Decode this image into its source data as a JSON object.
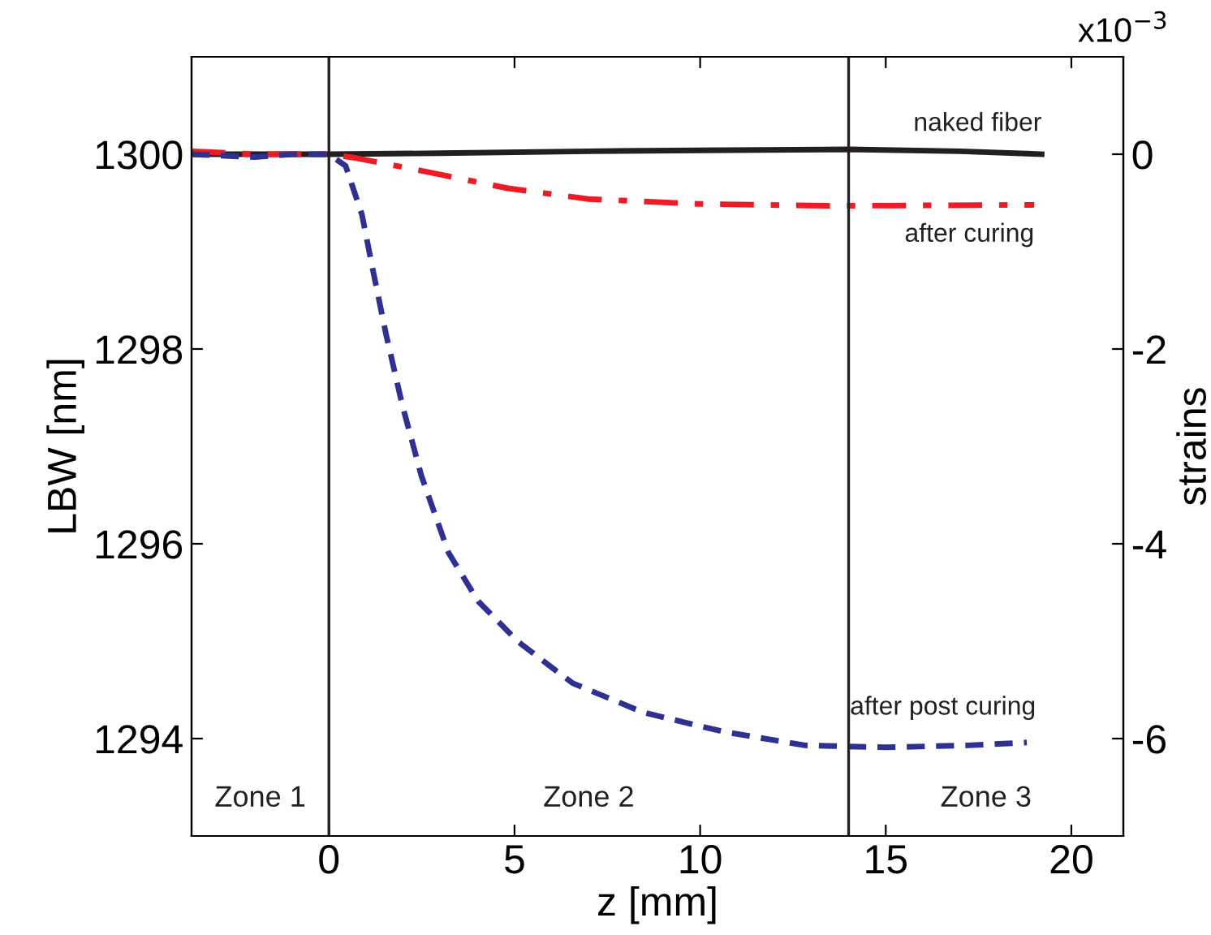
{
  "chart_data": {
    "type": "line",
    "xlabel": "z [mm]",
    "ylabel": "LBW [nm]",
    "y2label": "strains",
    "xlim": [
      -3.7,
      21.4
    ],
    "xticks": [
      0,
      5,
      10,
      15,
      20
    ],
    "ylim": [
      1293,
      1301
    ],
    "yticks": [
      1294,
      1296,
      1298,
      1300
    ],
    "y2lim": [
      -7,
      1
    ],
    "y2ticks": [
      -6,
      -4,
      -2,
      0
    ],
    "grid": false,
    "legend": false,
    "series": [
      {
        "name": "naked fiber",
        "color": "#231f20",
        "line_style": "solid",
        "x": [
          -3.7,
          -2,
          0,
          3,
          7,
          10,
          14,
          17,
          19.2
        ],
        "values": [
          1300.0,
          1300.0,
          1300.0,
          1300.01,
          1300.03,
          1300.04,
          1300.05,
          1300.03,
          1300.0
        ]
      },
      {
        "name": "after curing",
        "color": "#ed1c24",
        "line_style": "dashdot",
        "x": [
          -3.7,
          -2,
          0,
          0.74,
          2.63,
          4.82,
          7.0,
          9.91,
          13.5,
          19.0
        ],
        "values": [
          1300.03,
          1300.0,
          1300.0,
          1299.96,
          1299.82,
          1299.65,
          1299.54,
          1299.49,
          1299.47,
          1299.48
        ]
      },
      {
        "name": "after post curing",
        "color": "#2e3192",
        "line_style": "dashed",
        "x": [
          -3.7,
          -2,
          -1,
          0,
          0.45,
          0.89,
          1.18,
          1.54,
          1.98,
          2.49,
          3.22,
          4.02,
          5.11,
          6.56,
          8.46,
          10.64,
          12.83,
          15.0,
          17.2,
          18.8
        ],
        "values": [
          1300.0,
          1299.97,
          1300.0,
          1300.0,
          1299.88,
          1299.38,
          1298.82,
          1298.15,
          1297.42,
          1296.7,
          1295.91,
          1295.41,
          1294.99,
          1294.57,
          1294.27,
          1294.07,
          1293.93,
          1293.91,
          1293.93,
          1293.96
        ]
      }
    ],
    "ref_lines": [
      {
        "axis": "x",
        "value": 0,
        "color": "#231f20",
        "line_style": "solid"
      },
      {
        "axis": "x",
        "value": 14,
        "color": "#231f20",
        "line_style": "solid"
      }
    ],
    "annotations": [
      "Zone 1",
      "Zone 2",
      "Zone 3",
      "x10$^{−3}$"
    ]
  }
}
